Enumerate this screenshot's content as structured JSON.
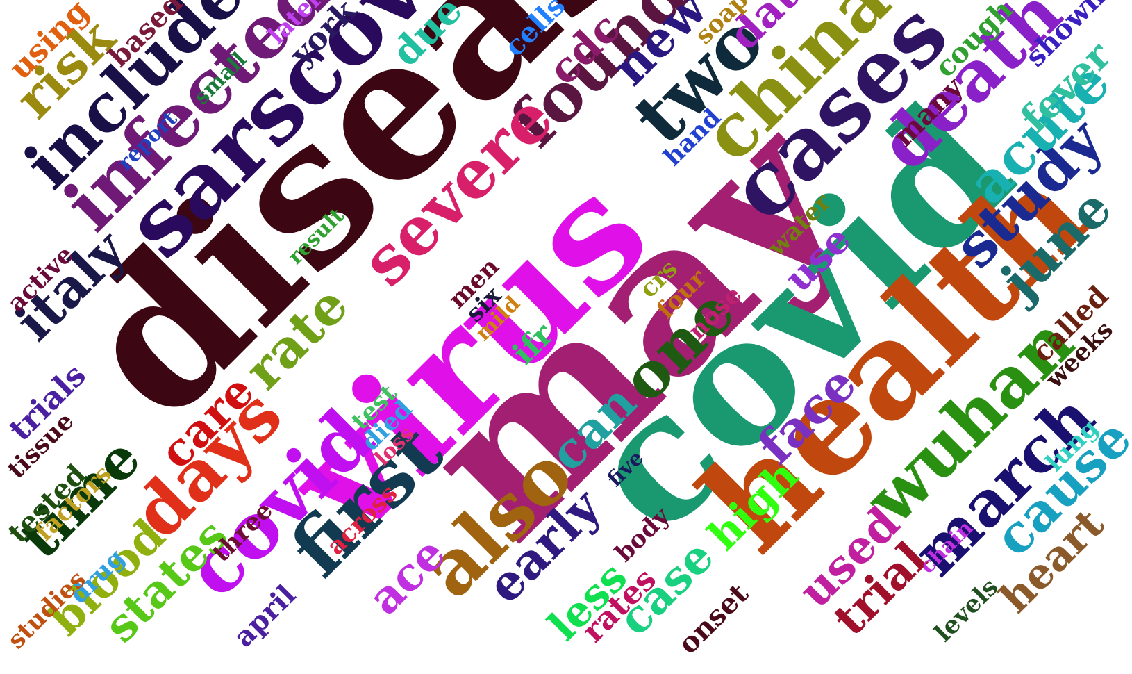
{
  "words": [
    {
      "text": "disease",
      "color": "#3c0712"
    },
    {
      "text": "virus",
      "color": "#e010e8"
    },
    {
      "text": "may",
      "color": "#a21f72"
    },
    {
      "text": "covid",
      "color": "#1a9870"
    },
    {
      "text": "health",
      "color": "#c0480e"
    },
    {
      "text": "sarscov",
      "color": "#2a0a5c"
    },
    {
      "text": "infected",
      "color": "#6e1a76"
    },
    {
      "text": "cases",
      "color": "#2e1463"
    },
    {
      "text": "china",
      "color": "#8a9012"
    },
    {
      "text": "death",
      "color": "#8a20c8"
    },
    {
      "text": "include",
      "color": "#1a1048"
    },
    {
      "text": "found",
      "color": "#5a1540"
    },
    {
      "text": "severe",
      "color": "#d8206a"
    },
    {
      "text": "two",
      "color": "#0f2a3a"
    },
    {
      "text": "one",
      "color": "#1e5a12"
    },
    {
      "text": "first",
      "color": "#123a50"
    },
    {
      "text": "also",
      "color": "#a06410"
    },
    {
      "text": "wuhan",
      "color": "#2a9012"
    },
    {
      "text": "march",
      "color": "#1a1070"
    },
    {
      "text": "covid",
      "color": "#c010f0"
    },
    {
      "text": "days",
      "color": "#e0301a"
    },
    {
      "text": "rate",
      "color": "#70a018"
    },
    {
      "text": "risk",
      "color": "#9a8a10"
    },
    {
      "text": "italy",
      "color": "#1a1848"
    },
    {
      "text": "time",
      "color": "#0a3a0a"
    },
    {
      "text": "study",
      "color": "#1a2a90"
    },
    {
      "text": "acute",
      "color": "#18b0b0"
    },
    {
      "text": "june",
      "color": "#1a6a6a"
    },
    {
      "text": "cause",
      "color": "#18a0c0"
    },
    {
      "text": "heart",
      "color": "#8a5a2a"
    },
    {
      "text": "new",
      "color": "#2a1880"
    },
    {
      "text": "data",
      "color": "#a020c0"
    },
    {
      "text": "face",
      "color": "#7a30c0"
    },
    {
      "text": "can",
      "color": "#20a0a0"
    },
    {
      "text": "early",
      "color": "#301a80"
    },
    {
      "text": "case",
      "color": "#18d080"
    },
    {
      "text": "high",
      "color": "#30ff10"
    },
    {
      "text": "used",
      "color": "#c020a0"
    },
    {
      "text": "trial",
      "color": "#a0102a"
    },
    {
      "text": "blood",
      "color": "#90b010"
    },
    {
      "text": "states",
      "color": "#58c818"
    },
    {
      "text": "care",
      "color": "#d01010"
    },
    {
      "text": "ace",
      "color": "#c030e0"
    },
    {
      "text": "less",
      "color": "#10e050"
    },
    {
      "text": "rates",
      "color": "#c01060"
    },
    {
      "text": "fever",
      "color": "#30c0a0"
    },
    {
      "text": "cough",
      "color": "#30a030"
    },
    {
      "text": "cdc",
      "color": "#8a1a6a"
    },
    {
      "text": "due",
      "color": "#20c0a0"
    },
    {
      "text": "cells",
      "color": "#2080ff"
    },
    {
      "text": "using",
      "color": "#e06010"
    },
    {
      "text": "based",
      "color": "#7a1a3a"
    },
    {
      "text": "later",
      "color": "#c040f0"
    },
    {
      "text": "york",
      "color": "#2a1a60"
    },
    {
      "text": "small",
      "color": "#1a7a3a"
    },
    {
      "text": "report",
      "color": "#2040c0"
    },
    {
      "text": "soap",
      "color": "#b08010"
    },
    {
      "text": "shown",
      "color": "#3a20c0"
    },
    {
      "text": "hand",
      "color": "#2040d0"
    },
    {
      "text": "many",
      "color": "#6a0a3a"
    },
    {
      "text": "water",
      "color": "#708010"
    },
    {
      "text": "use",
      "color": "#9030d0"
    },
    {
      "text": "result",
      "color": "#30a030"
    },
    {
      "text": "active",
      "color": "#6a0a3a"
    },
    {
      "text": "trials",
      "color": "#4a20a0"
    },
    {
      "text": "tissue",
      "color": "#4a0a1a"
    },
    {
      "text": "tested",
      "color": "#205010"
    },
    {
      "text": "factors",
      "color": "#c0a020"
    },
    {
      "text": "drug",
      "color": "#30a0e0"
    },
    {
      "text": "studies",
      "color": "#c05010"
    },
    {
      "text": "april",
      "color": "#4a20a0"
    },
    {
      "text": "three",
      "color": "#6a1030"
    },
    {
      "text": "across",
      "color": "#e02040"
    },
    {
      "text": "test",
      "color": "#40c060"
    },
    {
      "text": "died",
      "color": "#30a0e0"
    },
    {
      "text": "loss",
      "color": "#e03070"
    },
    {
      "text": "men",
      "color": "#6a0a2a"
    },
    {
      "text": "six",
      "color": "#1a1a3a"
    },
    {
      "text": "mild",
      "color": "#d08010"
    },
    {
      "text": "ifr",
      "color": "#30c060"
    },
    {
      "text": "crs",
      "color": "#90a010"
    },
    {
      "text": "four",
      "color": "#c07010"
    },
    {
      "text": "nose",
      "color": "#c02070"
    },
    {
      "text": "five",
      "color": "#1a1a60"
    },
    {
      "text": "body",
      "color": "#6a0a3a"
    },
    {
      "text": "onset",
      "color": "#4a0a1a"
    },
    {
      "text": "chain",
      "color": "#c030e0"
    },
    {
      "text": "levels",
      "color": "#205020"
    },
    {
      "text": "lung",
      "color": "#30d0c0"
    },
    {
      "text": "called",
      "color": "#6a2010"
    },
    {
      "text": "weeks",
      "color": "#3a1010"
    }
  ]
}
